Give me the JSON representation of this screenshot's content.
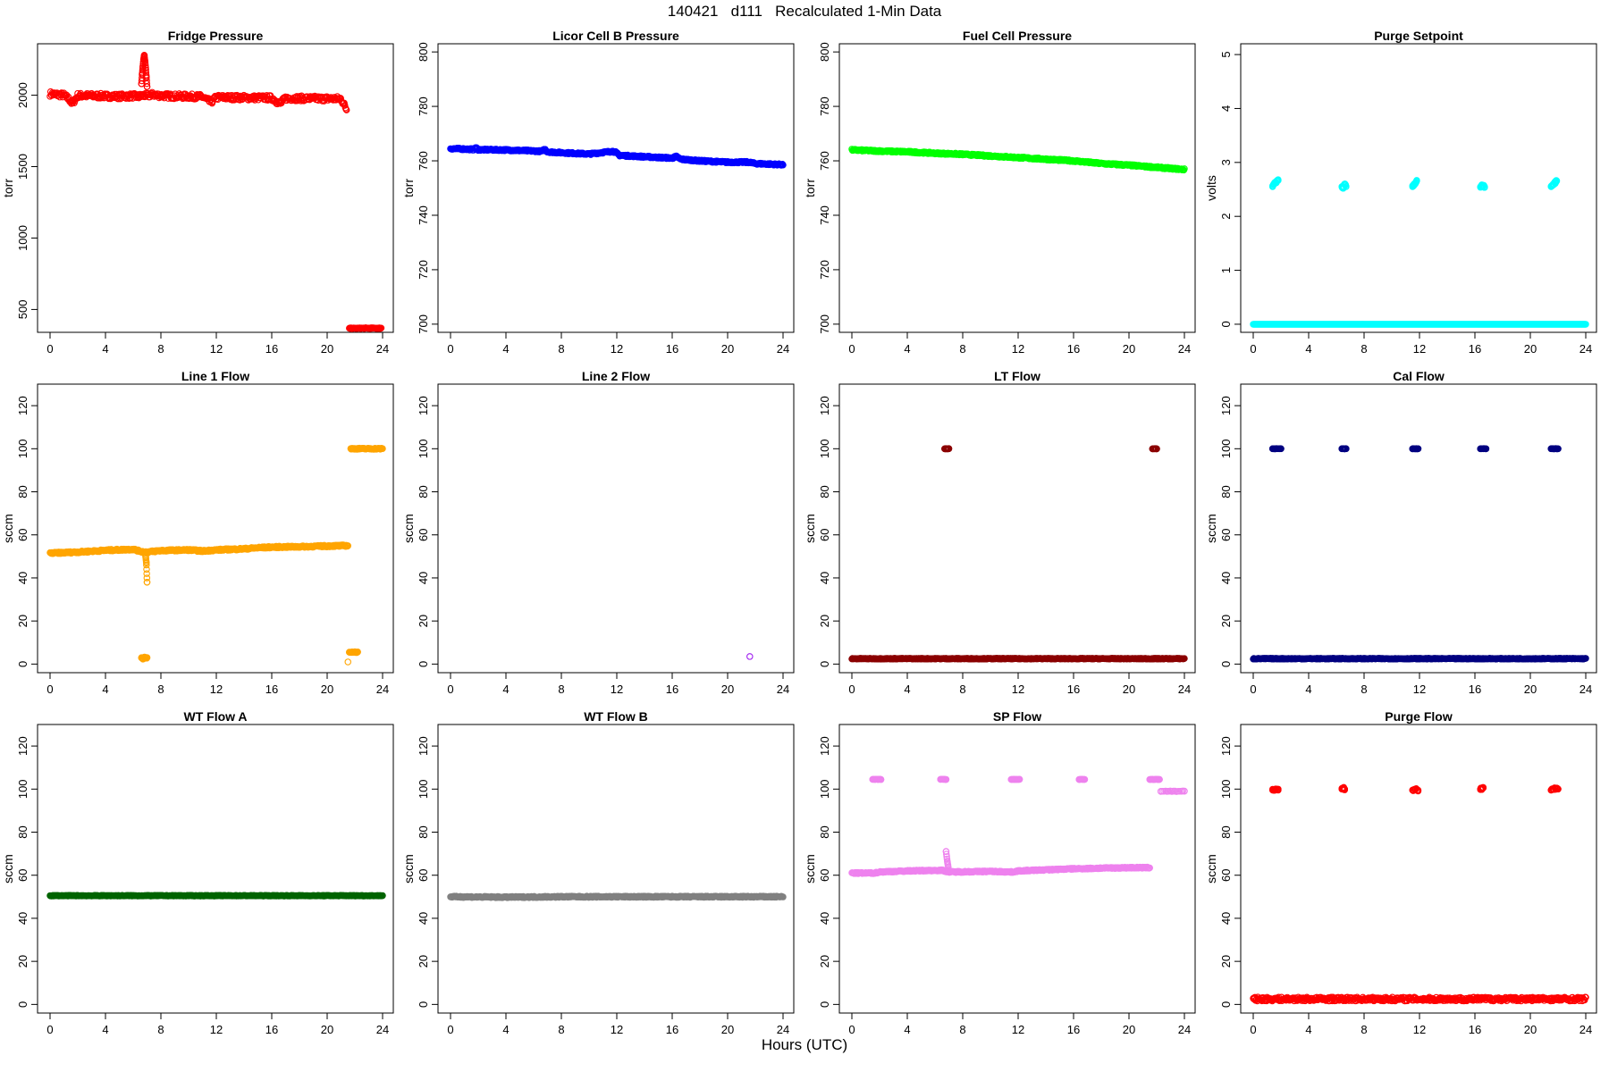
{
  "page": {
    "title": "140421   d111   Recalculated 1-Min Data",
    "xlabel": "Hours (UTC)"
  },
  "chart_data": [
    {
      "type": "scatter",
      "title": "Fridge Pressure",
      "ylabel": "torr",
      "color": "#ff0000",
      "xlim": [
        0,
        24
      ],
      "ylim": [
        340,
        2360
      ],
      "xticks": [
        0,
        4,
        8,
        12,
        16,
        20,
        24
      ],
      "yticks": [
        500,
        1000,
        1500,
        2000
      ],
      "series": [
        {
          "x": [
            0,
            0.5,
            1,
            1.4,
            1.6,
            2,
            3,
            4,
            5,
            6,
            6.4,
            6.8,
            7,
            7.4,
            8,
            9,
            10,
            11,
            11.6,
            12,
            13,
            14,
            15,
            16,
            16.6,
            17,
            18,
            19,
            20,
            21,
            21.4
          ],
          "y": [
            2010,
            2005,
            2000,
            1970,
            1940,
            1998,
            1996,
            1994,
            1992,
            1995,
            1990,
            2000,
            1995,
            2005,
            1997,
            1993,
            1992,
            1989,
            1950,
            1985,
            1984,
            1983,
            1982,
            1981,
            1940,
            1979,
            1978,
            1977,
            1976,
            1975,
            1900
          ],
          "scatter": 18
        },
        {
          "x": [
            6.6,
            6.65,
            6.7,
            6.75,
            6.8,
            6.85,
            6.9,
            6.95,
            7.0
          ],
          "y": [
            2080,
            2150,
            2200,
            2250,
            2280,
            2240,
            2190,
            2130,
            2060
          ],
          "scatter": 0
        },
        {
          "x": [
            21.6,
            22,
            22.4,
            22.8,
            23.2,
            23.6,
            23.9
          ],
          "y": [
            368,
            368,
            369,
            369,
            369,
            369,
            369
          ],
          "scatter": 3
        }
      ]
    },
    {
      "type": "scatter",
      "title": "Licor Cell B Pressure",
      "ylabel": "torr",
      "color": "#0000ff",
      "xlim": [
        0,
        24
      ],
      "ylim": [
        697,
        803
      ],
      "xticks": [
        0,
        4,
        8,
        12,
        16,
        20,
        24
      ],
      "yticks": [
        700,
        720,
        740,
        760,
        780,
        800
      ],
      "series": [
        {
          "x": [
            0,
            1.7,
            1.8,
            2,
            4,
            6.6,
            6.8,
            7,
            8,
            10,
            11.7,
            11.9,
            12.2,
            14,
            16,
            16.3,
            16.6,
            18,
            20,
            21.5,
            22,
            24
          ],
          "y": [
            764.5,
            764.2,
            765,
            764.1,
            764,
            763.5,
            764.3,
            763.3,
            763,
            762.5,
            763.5,
            763.2,
            762,
            761.5,
            761,
            761.6,
            760.6,
            760,
            759.5,
            759.5,
            759,
            758.6
          ],
          "scatter": 0.3
        }
      ]
    },
    {
      "type": "scatter",
      "title": "Fuel Cell Pressure",
      "ylabel": "torr",
      "color": "#00ff00",
      "xlim": [
        0,
        24
      ],
      "ylim": [
        697,
        803
      ],
      "xticks": [
        0,
        4,
        8,
        12,
        16,
        20,
        24
      ],
      "yticks": [
        700,
        720,
        740,
        760,
        780,
        800
      ],
      "series": [
        {
          "x": [
            0,
            2,
            4,
            6,
            8,
            10,
            12,
            14,
            16,
            18,
            20,
            22,
            24
          ],
          "y": [
            764,
            763.6,
            763.3,
            762.8,
            762.4,
            761.8,
            761.2,
            760.6,
            760,
            759,
            758.4,
            757.6,
            756.8
          ],
          "scatter": 0.3
        }
      ]
    },
    {
      "type": "scatter",
      "title": "Purge Setpoint",
      "ylabel": "volts",
      "color": "#00ffff",
      "xlim": [
        0,
        24
      ],
      "ylim": [
        -0.15,
        5.2
      ],
      "xticks": [
        0,
        4,
        8,
        12,
        16,
        20,
        24
      ],
      "yticks": [
        0,
        1,
        2,
        3,
        4,
        5
      ],
      "series": [
        {
          "x": [
            0,
            24
          ],
          "y": [
            0,
            0
          ],
          "scatter": 0
        },
        {
          "x": [
            1.4,
            1.5,
            1.6,
            1.7,
            1.8
          ],
          "y": [
            2.55,
            2.6,
            2.62,
            2.65,
            2.68
          ],
          "scatter": 0.02
        },
        {
          "x": [
            6.4,
            6.5,
            6.6,
            6.7
          ],
          "y": [
            2.55,
            2.52,
            2.6,
            2.55
          ],
          "scatter": 0.02
        },
        {
          "x": [
            11.5,
            11.6,
            11.7,
            11.8
          ],
          "y": [
            2.55,
            2.58,
            2.62,
            2.66
          ],
          "scatter": 0.02
        },
        {
          "x": [
            16.4,
            16.5,
            16.6,
            16.7
          ],
          "y": [
            2.55,
            2.57,
            2.56,
            2.55
          ],
          "scatter": 0.02
        },
        {
          "x": [
            21.5,
            21.6,
            21.7,
            21.8,
            21.9
          ],
          "y": [
            2.55,
            2.57,
            2.6,
            2.63,
            2.66
          ],
          "scatter": 0.02
        }
      ]
    },
    {
      "type": "scatter",
      "title": "Line 1 Flow",
      "ylabel": "sccm",
      "color": "#ffa500",
      "xlim": [
        0,
        24
      ],
      "ylim": [
        -4,
        130
      ],
      "xticks": [
        0,
        4,
        8,
        12,
        16,
        20,
        24
      ],
      "yticks": [
        0,
        20,
        40,
        60,
        80,
        100,
        120
      ],
      "series": [
        {
          "x": [
            0,
            2,
            4,
            6,
            6.6,
            7,
            8,
            10,
            11,
            12,
            14,
            15,
            16,
            18,
            20,
            21.5
          ],
          "y": [
            51.5,
            52,
            52.8,
            53.3,
            52.2,
            52,
            52.7,
            53,
            52.5,
            53,
            53.5,
            54,
            54.3,
            54.5,
            54.8,
            55
          ],
          "scatter": 0.4
        },
        {
          "x": [
            6.9,
            6.95,
            7.0
          ],
          "y": [
            50,
            47,
            38
          ],
          "scatter": 0
        },
        {
          "x": [
            6.6,
            6.7,
            6.8,
            6.9,
            7.0
          ],
          "y": [
            3,
            2.5,
            3,
            2.8,
            3
          ],
          "scatter": 0.3
        },
        {
          "x": [
            21.6,
            21.8,
            22,
            22.2
          ],
          "y": [
            5.5,
            5.7,
            5.5,
            5.6
          ],
          "scatter": 0.3
        },
        {
          "x": [
            21.5
          ],
          "y": [
            1
          ],
          "scatter": 0
        },
        {
          "x": [
            21.7,
            22,
            22.5,
            23,
            23.5,
            24
          ],
          "y": [
            100,
            100,
            100,
            100,
            100,
            100
          ],
          "scatter": 0.3
        }
      ]
    },
    {
      "type": "scatter",
      "title": "Line 2 Flow",
      "ylabel": "sccm",
      "color": "#a020f0",
      "xlim": [
        0,
        24
      ],
      "ylim": [
        -4,
        130
      ],
      "xticks": [
        0,
        4,
        8,
        12,
        16,
        20,
        24
      ],
      "yticks": [
        0,
        20,
        40,
        60,
        80,
        100,
        120
      ],
      "series": [
        {
          "x": [
            21.6
          ],
          "y": [
            3.5
          ],
          "scatter": 0
        }
      ]
    },
    {
      "type": "scatter",
      "title": "LT Flow",
      "ylabel": "sccm",
      "color": "#8b0000",
      "xlim": [
        0,
        24
      ],
      "ylim": [
        -4,
        130
      ],
      "xticks": [
        0,
        4,
        8,
        12,
        16,
        20,
        24
      ],
      "yticks": [
        0,
        20,
        40,
        60,
        80,
        100,
        120
      ],
      "series": [
        {
          "x": [
            0,
            24
          ],
          "y": [
            2.5,
            2.5
          ],
          "scatter": 0.2
        },
        {
          "x": [
            6.7,
            6.8,
            6.9,
            7.0
          ],
          "y": [
            100,
            100,
            100,
            100
          ],
          "scatter": 0.1
        },
        {
          "x": [
            21.7,
            21.8,
            21.9,
            22.0
          ],
          "y": [
            100,
            100,
            100,
            100
          ],
          "scatter": 0.1
        }
      ]
    },
    {
      "type": "scatter",
      "title": "Cal Flow",
      "ylabel": "sccm",
      "color": "#000080",
      "xlim": [
        0,
        24
      ],
      "ylim": [
        -4,
        130
      ],
      "xticks": [
        0,
        4,
        8,
        12,
        16,
        20,
        24
      ],
      "yticks": [
        0,
        20,
        40,
        60,
        80,
        100,
        120
      ],
      "series": [
        {
          "x": [
            0,
            24
          ],
          "y": [
            2.5,
            2.5
          ],
          "scatter": 0.2
        },
        {
          "x": [
            1.4,
            1.6,
            1.8,
            2.0
          ],
          "y": [
            100,
            100,
            100,
            100
          ],
          "scatter": 0.1
        },
        {
          "x": [
            6.4,
            6.6,
            6.7
          ],
          "y": [
            100,
            100,
            100
          ],
          "scatter": 0.1
        },
        {
          "x": [
            11.5,
            11.7,
            11.9
          ],
          "y": [
            100,
            100,
            100
          ],
          "scatter": 0.1
        },
        {
          "x": [
            16.4,
            16.6,
            16.8
          ],
          "y": [
            100,
            100,
            100
          ],
          "scatter": 0.1
        },
        {
          "x": [
            21.5,
            21.7,
            21.9,
            22.0
          ],
          "y": [
            100,
            100,
            100,
            100
          ],
          "scatter": 0.1
        }
      ]
    },
    {
      "type": "scatter",
      "title": "WT Flow A",
      "ylabel": "sccm",
      "color": "#006400",
      "xlim": [
        0,
        24
      ],
      "ylim": [
        -4,
        130
      ],
      "xticks": [
        0,
        4,
        8,
        12,
        16,
        20,
        24
      ],
      "yticks": [
        0,
        20,
        40,
        60,
        80,
        100,
        120
      ],
      "series": [
        {
          "x": [
            0,
            24
          ],
          "y": [
            50.5,
            50.5
          ],
          "scatter": 0.15
        }
      ]
    },
    {
      "type": "scatter",
      "title": "WT Flow B",
      "ylabel": "sccm",
      "color": "#808080",
      "xlim": [
        0,
        24
      ],
      "ylim": [
        -4,
        130
      ],
      "xticks": [
        0,
        4,
        8,
        12,
        16,
        20,
        24
      ],
      "yticks": [
        0,
        20,
        40,
        60,
        80,
        100,
        120
      ],
      "series": [
        {
          "x": [
            0,
            4,
            8,
            12,
            16,
            20,
            24
          ],
          "y": [
            50,
            49.8,
            50,
            50,
            50,
            50,
            50
          ],
          "scatter": 0.3
        }
      ]
    },
    {
      "type": "scatter",
      "title": "SP Flow",
      "ylabel": "sccm",
      "color": "#ee82ee",
      "xlim": [
        0,
        24
      ],
      "ylim": [
        -4,
        130
      ],
      "xticks": [
        0,
        4,
        8,
        12,
        16,
        20,
        24
      ],
      "yticks": [
        0,
        20,
        40,
        60,
        80,
        100,
        120
      ],
      "series": [
        {
          "x": [
            0,
            1.6,
            2,
            4,
            6.5,
            7,
            8,
            10,
            11.6,
            12,
            14,
            16,
            17,
            18,
            20,
            21.5
          ],
          "y": [
            61,
            61,
            61.5,
            62,
            62.3,
            61.5,
            61.6,
            61.8,
            61.5,
            62,
            62.5,
            63,
            63.1,
            63.3,
            63.5,
            63.5
          ],
          "scatter": 0.3
        },
        {
          "x": [
            6.8,
            6.9,
            7.0
          ],
          "y": [
            71,
            66,
            62
          ],
          "scatter": 0.3
        },
        {
          "x": [
            1.5,
            1.7,
            1.9,
            2.1
          ],
          "y": [
            104.5,
            104.5,
            104.5,
            104.5
          ],
          "scatter": 0.1
        },
        {
          "x": [
            6.4,
            6.6,
            6.8
          ],
          "y": [
            104.5,
            104.5,
            104.5
          ],
          "scatter": 0.1
        },
        {
          "x": [
            11.5,
            11.7,
            11.9,
            12.1
          ],
          "y": [
            104.5,
            104.5,
            104.5,
            104.5
          ],
          "scatter": 0.1
        },
        {
          "x": [
            16.4,
            16.6,
            16.8
          ],
          "y": [
            104.5,
            104.5,
            104.5
          ],
          "scatter": 0.1
        },
        {
          "x": [
            21.5,
            21.7,
            21.9,
            22.1,
            22.2
          ],
          "y": [
            104.5,
            104.5,
            104.5,
            104.5,
            104.5
          ],
          "scatter": 0.1
        },
        {
          "x": [
            22.3,
            22.8,
            23.3,
            23.8,
            24
          ],
          "y": [
            99,
            99,
            99,
            99,
            99
          ],
          "scatter": 0.2
        }
      ]
    },
    {
      "type": "scatter",
      "title": "Purge Flow",
      "ylabel": "sccm",
      "color": "#ff0000",
      "xlim": [
        0,
        24
      ],
      "ylim": [
        -4,
        130
      ],
      "xticks": [
        0,
        4,
        8,
        12,
        16,
        20,
        24
      ],
      "yticks": [
        0,
        20,
        40,
        60,
        80,
        100,
        120
      ],
      "series": [
        {
          "x": [
            0,
            4,
            8,
            12,
            16,
            20,
            24
          ],
          "y": [
            2.5,
            2.5,
            2.5,
            2.5,
            2.5,
            2.5,
            2.5
          ],
          "scatter": 0.9
        },
        {
          "x": [
            1.4,
            1.6,
            1.8
          ],
          "y": [
            99.5,
            100,
            99.5
          ],
          "scatter": 0.5
        },
        {
          "x": [
            6.4,
            6.5,
            6.6
          ],
          "y": [
            100,
            100.5,
            100
          ],
          "scatter": 0.5
        },
        {
          "x": [
            11.5,
            11.7,
            11.9
          ],
          "y": [
            99.5,
            100,
            99.5
          ],
          "scatter": 0.5
        },
        {
          "x": [
            16.4,
            16.6
          ],
          "y": [
            100,
            100.5
          ],
          "scatter": 0.5
        },
        {
          "x": [
            21.5,
            21.7,
            21.9,
            22.0
          ],
          "y": [
            99.5,
            100,
            100.5,
            100
          ],
          "scatter": 0.5
        }
      ]
    }
  ]
}
